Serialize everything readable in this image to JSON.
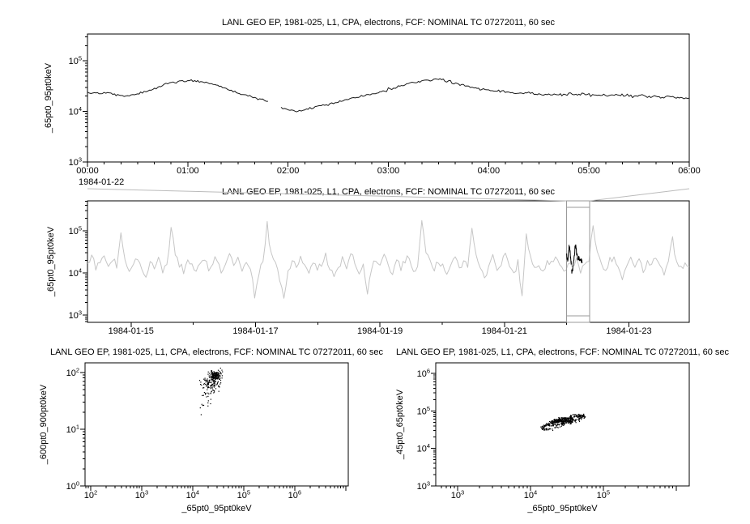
{
  "window": {
    "background": "#ffffff"
  },
  "colors": {
    "axis": "#000000",
    "text": "#000000",
    "series_top": "#1a1a1a",
    "series_context": "#c6c6c6",
    "series_highlight": "#000000",
    "connector": "#bbbbbb",
    "selection": "#9a9a9a",
    "scatter": "#000000"
  },
  "chart_data": [
    {
      "id": "top-timeseries",
      "type": "line",
      "title": "LANL GEO EP, 1981-025, L1, CPA, electrons, FCF: NOMINAL TC 07272011, 60 sec",
      "ylabel": "_65pt0_95pt0keV",
      "context_date": "1984-01-22",
      "x_unit": "hours",
      "xlim": [
        0,
        6
      ],
      "x_minor_step": 0.1667,
      "x_ticks": [
        {
          "v": 0,
          "label": "00:00"
        },
        {
          "v": 1,
          "label": "01:00"
        },
        {
          "v": 2,
          "label": "02:00"
        },
        {
          "v": 3,
          "label": "03:00"
        },
        {
          "v": 4,
          "label": "04:00"
        },
        {
          "v": 5,
          "label": "05:00"
        },
        {
          "v": 6,
          "label": "06:00"
        }
      ],
      "ylim_log": [
        3.0,
        5.53
      ],
      "y_ticks_exp": [
        3,
        4,
        5
      ],
      "noise_sigma": 0.012,
      "segments_log10": [
        [
          [
            0.0,
            4.38
          ],
          [
            0.07,
            4.37
          ],
          [
            0.13,
            4.35
          ],
          [
            0.2,
            4.36
          ],
          [
            0.27,
            4.33
          ],
          [
            0.33,
            4.31
          ],
          [
            0.4,
            4.3
          ],
          [
            0.47,
            4.33
          ],
          [
            0.53,
            4.36
          ],
          [
            0.6,
            4.4
          ],
          [
            0.67,
            4.45
          ],
          [
            0.73,
            4.5
          ],
          [
            0.8,
            4.55
          ],
          [
            0.87,
            4.58
          ],
          [
            0.93,
            4.6
          ],
          [
            1.0,
            4.61
          ],
          [
            1.07,
            4.6
          ],
          [
            1.13,
            4.58
          ],
          [
            1.2,
            4.56
          ],
          [
            1.27,
            4.53
          ],
          [
            1.33,
            4.49
          ],
          [
            1.4,
            4.44
          ],
          [
            1.47,
            4.39
          ],
          [
            1.53,
            4.35
          ],
          [
            1.6,
            4.31
          ],
          [
            1.67,
            4.27
          ],
          [
            1.73,
            4.24
          ],
          [
            1.8,
            4.2
          ]
        ],
        [
          [
            1.93,
            4.09
          ],
          [
            2.0,
            4.03
          ],
          [
            2.07,
            4.0
          ],
          [
            2.13,
            4.02
          ],
          [
            2.2,
            4.05
          ],
          [
            2.27,
            4.08
          ],
          [
            2.33,
            4.11
          ],
          [
            2.4,
            4.14
          ],
          [
            2.47,
            4.17
          ],
          [
            2.53,
            4.21
          ],
          [
            2.6,
            4.24
          ],
          [
            2.67,
            4.27
          ],
          [
            2.73,
            4.3
          ],
          [
            2.8,
            4.33
          ],
          [
            2.87,
            4.36
          ],
          [
            2.93,
            4.4
          ],
          [
            3.0,
            4.43
          ],
          [
            3.07,
            4.47
          ],
          [
            3.13,
            4.51
          ],
          [
            3.2,
            4.55
          ],
          [
            3.27,
            4.58
          ],
          [
            3.33,
            4.6
          ],
          [
            3.4,
            4.62
          ],
          [
            3.47,
            4.64
          ],
          [
            3.53,
            4.62
          ],
          [
            3.6,
            4.59
          ],
          [
            3.67,
            4.55
          ],
          [
            3.73,
            4.52
          ],
          [
            3.8,
            4.49
          ],
          [
            3.87,
            4.47
          ],
          [
            3.93,
            4.45
          ],
          [
            4.0,
            4.43
          ],
          [
            4.07,
            4.41
          ],
          [
            4.13,
            4.4
          ],
          [
            4.2,
            4.38
          ],
          [
            4.27,
            4.36
          ],
          [
            4.33,
            4.35
          ],
          [
            4.4,
            4.36
          ],
          [
            4.47,
            4.35
          ],
          [
            4.53,
            4.34
          ],
          [
            4.6,
            4.35
          ],
          [
            4.67,
            4.34
          ],
          [
            4.73,
            4.33
          ],
          [
            4.8,
            4.34
          ],
          [
            4.87,
            4.33
          ],
          [
            4.93,
            4.34
          ],
          [
            5.0,
            4.33
          ],
          [
            5.07,
            4.32
          ],
          [
            5.13,
            4.33
          ],
          [
            5.2,
            4.32
          ],
          [
            5.27,
            4.33
          ],
          [
            5.33,
            4.31
          ],
          [
            5.4,
            4.32
          ],
          [
            5.47,
            4.3
          ],
          [
            5.53,
            4.31
          ],
          [
            5.6,
            4.29
          ],
          [
            5.67,
            4.3
          ],
          [
            5.73,
            4.28
          ],
          [
            5.8,
            4.29
          ],
          [
            5.87,
            4.27
          ],
          [
            5.93,
            4.27
          ],
          [
            6.0,
            4.26
          ]
        ]
      ]
    },
    {
      "id": "context-overview",
      "type": "line",
      "title": "LANL GEO EP, 1981-025, L1, CPA, electrons, FCF: NOMINAL TC 07272011, 60 sec",
      "ylabel": "_65pt0_95pt0keV",
      "x_unit": "date",
      "xlim": [
        14.3,
        23.97
      ],
      "x_minor_step": 1,
      "x_ticks": [
        {
          "v": 15,
          "label": "1984-01-15"
        },
        {
          "v": 17,
          "label": "1984-01-17"
        },
        {
          "v": 19,
          "label": "1984-01-19"
        },
        {
          "v": 21,
          "label": "1984-01-21"
        },
        {
          "v": 23,
          "label": "1984-01-23"
        }
      ],
      "ylim_log": [
        2.83,
        5.71
      ],
      "y_ticks_exp": [
        3,
        4,
        5
      ],
      "noise_sigma": 0.05,
      "values_log10": [
        4.2,
        4.35,
        4.1,
        4.25,
        4.4,
        4.15,
        4.3,
        4.2,
        4.95,
        4.3,
        4.05,
        4.2,
        4.4,
        4.1,
        3.9,
        4.25,
        4.15,
        4.35,
        4.05,
        4.2,
        5.05,
        4.45,
        4.2,
        4.0,
        4.3,
        4.15,
        3.95,
        4.25,
        4.4,
        4.1,
        4.2,
        4.35,
        4.0,
        4.2,
        4.45,
        4.15,
        4.3,
        4.05,
        4.25,
        4.1,
        3.45,
        4.0,
        4.3,
        5.1,
        4.5,
        4.2,
        3.9,
        3.35,
        4.05,
        4.3,
        4.15,
        4.4,
        4.2,
        4.0,
        4.3,
        4.1,
        4.25,
        4.45,
        4.1,
        3.95,
        4.2,
        4.35,
        4.05,
        4.5,
        4.2,
        4.0,
        4.15,
        3.5,
        4.1,
        4.3,
        4.2,
        4.45,
        4.15,
        3.95,
        4.3,
        4.1,
        4.25,
        4.4,
        4.05,
        4.2,
        5.2,
        4.55,
        4.25,
        4.05,
        4.3,
        4.15,
        3.9,
        4.2,
        4.4,
        4.1,
        4.3,
        4.15,
        5.0,
        4.4,
        4.1,
        3.85,
        4.2,
        4.35,
        4.05,
        4.25,
        4.45,
        4.15,
        3.95,
        4.3,
        3.4,
        4.9,
        4.35,
        4.1,
        4.25,
        4.0,
        4.3,
        4.15,
        4.4,
        4.2,
        3.95,
        4.25,
        4.1,
        4.35,
        4.05,
        4.2,
        4.3,
        5.15,
        4.45,
        4.2,
        4.0,
        4.25,
        4.4,
        4.1,
        3.9,
        4.2,
        4.35,
        4.15,
        4.3,
        4.05,
        4.25,
        4.15,
        4.4,
        4.2,
        4.0,
        4.3,
        4.85,
        4.3,
        4.1,
        4.25,
        4.15
      ],
      "selection": {
        "x0": 22.0,
        "x1": 22.37
      }
    },
    {
      "id": "scatter-600-900",
      "type": "scatter",
      "title": "LANL GEO EP, 1981-025, L1, CPA, electrons, FCF: NOMINAL TC 07272011, 60 sec",
      "xlabel": "_65pt0_95pt0keV",
      "ylabel": "_600pt0_900pt0keV",
      "xlim_log": [
        1.89,
        7.05
      ],
      "x_ticks_exp": [
        2,
        3,
        4,
        5,
        6
      ],
      "ylim_log": [
        0,
        2.17
      ],
      "y_ticks_exp": [
        0,
        1,
        2
      ],
      "clusters": [
        {
          "type": "gauss",
          "cx": 4.44,
          "cy": 1.94,
          "sx": 0.05,
          "sy": 0.04,
          "n": 160
        },
        {
          "type": "gauss",
          "cx": 4.36,
          "cy": 1.8,
          "sx": 0.09,
          "sy": 0.08,
          "n": 110
        },
        {
          "type": "gauss",
          "cx": 4.3,
          "cy": 1.6,
          "sx": 0.07,
          "sy": 0.1,
          "n": 20
        },
        {
          "type": "gauss",
          "cx": 4.22,
          "cy": 1.38,
          "sx": 0.05,
          "sy": 0.1,
          "n": 6
        }
      ]
    },
    {
      "id": "scatter-45-65",
      "type": "scatter",
      "title": "LANL GEO EP, 1981-025, L1, CPA, electrons, FCF: NOMINAL TC 07272011, 60 sec",
      "xlabel": "_65pt0_95pt0keV",
      "ylabel": "_45pt0_65pt0keV",
      "xlim_log": [
        2.7,
        6.18
      ],
      "x_ticks_exp": [
        3,
        4,
        5
      ],
      "ylim_log": [
        3.0,
        6.28
      ],
      "y_ticks_exp": [
        3,
        4,
        5,
        6
      ],
      "clusters": [
        {
          "type": "ring",
          "cx": 4.45,
          "cy": 4.7,
          "a": 0.33,
          "b": 0.09,
          "rot": 33,
          "n": 140,
          "jitter": 0.018
        },
        {
          "type": "ring",
          "cx": 4.46,
          "cy": 4.73,
          "a": 0.24,
          "b": 0.06,
          "rot": 30,
          "n": 120,
          "jitter": 0.015
        },
        {
          "type": "ring",
          "cx": 4.44,
          "cy": 4.72,
          "a": 0.15,
          "b": 0.045,
          "rot": 28,
          "n": 100,
          "jitter": 0.012
        },
        {
          "type": "gauss",
          "cx": 4.45,
          "cy": 4.74,
          "sx": 0.06,
          "sy": 0.035,
          "n": 150
        }
      ]
    }
  ]
}
